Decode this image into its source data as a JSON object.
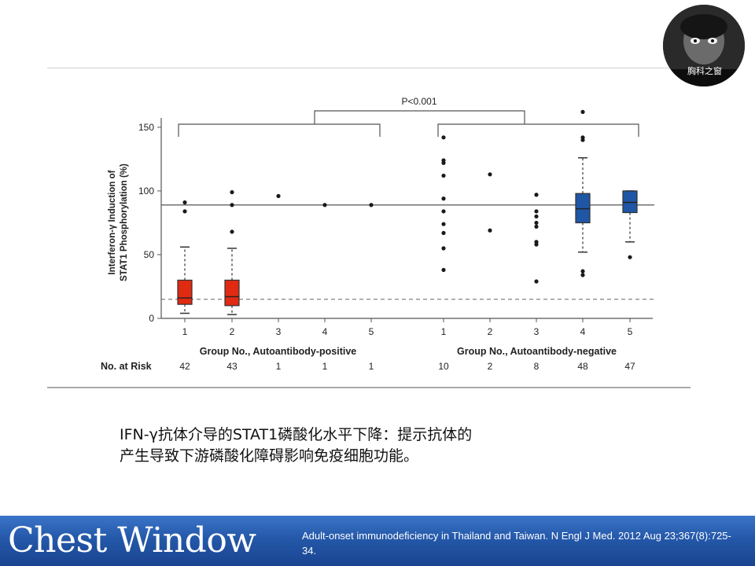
{
  "chart_data": {
    "type": "box",
    "ylabel_line1": "Interferon-γ Induction of",
    "ylabel_line2": "STAT1 Phosphorylation (%)",
    "ylim": [
      0,
      160
    ],
    "yticks": [
      0,
      50,
      100,
      150
    ],
    "reference_lines": {
      "solid": 89,
      "dashed": 15
    },
    "significance": "P<0.001",
    "groups": [
      {
        "name": "Group No., Autoantibody-positive",
        "color": "#e02a12",
        "risk_label": "No. at Risk",
        "categories": [
          "1",
          "2",
          "3",
          "4",
          "5"
        ],
        "n_at_risk": [
          "42",
          "43",
          "1",
          "1",
          "1"
        ],
        "series": [
          {
            "name": "1",
            "box": {
              "whisker_low": 4,
              "q1": 11,
              "median": 16,
              "q3": 30,
              "whisker_high": 56
            },
            "outliers": [
              84,
              91
            ]
          },
          {
            "name": "2",
            "box": {
              "whisker_low": 3,
              "q1": 10,
              "median": 17,
              "q3": 30,
              "whisker_high": 55
            },
            "outliers": [
              68,
              89,
              99
            ]
          },
          {
            "name": "3",
            "box": null,
            "outliers": [
              96
            ]
          },
          {
            "name": "4",
            "box": null,
            "outliers": [
              89
            ]
          },
          {
            "name": "5",
            "box": null,
            "outliers": [
              89
            ]
          }
        ]
      },
      {
        "name": "Group No., Autoantibody-negative",
        "color": "#1f56a5",
        "categories": [
          "1",
          "2",
          "3",
          "4",
          "5"
        ],
        "n_at_risk": [
          "10",
          "2",
          "8",
          "48",
          "47"
        ],
        "series": [
          {
            "name": "1",
            "box": null,
            "outliers": [
              38,
              55,
              67,
              74,
              84,
              94,
              112,
              122,
              124,
              142
            ]
          },
          {
            "name": "2",
            "box": null,
            "outliers": [
              69,
              113
            ]
          },
          {
            "name": "3",
            "box": null,
            "outliers": [
              29,
              58,
              60,
              72,
              75,
              80,
              84,
              97
            ]
          },
          {
            "name": "4",
            "box": {
              "whisker_low": 52,
              "q1": 75,
              "median": 86,
              "q3": 98,
              "whisker_high": 126
            },
            "outliers": [
              34,
              37,
              140,
              142,
              162
            ]
          },
          {
            "name": "5",
            "box": {
              "whisker_low": 60,
              "q1": 83,
              "median": 91,
              "q3": 100,
              "whisker_high": 100
            },
            "outliers": [
              48
            ]
          }
        ]
      }
    ]
  },
  "caption": {
    "line1": "IFN-γ抗体介导的STAT1磷酸化水平下降：提示抗体的",
    "line2": "产生导致下游磷酸化障碍影响免疫细胞功能。"
  },
  "logo": {
    "text": "胸科之窗"
  },
  "footer": {
    "title": "Chest Window",
    "reference": "Adult-onset immunodeficiency in Thailand and Taiwan. N Engl J Med. 2012 Aug 23;367(8):725-34."
  }
}
